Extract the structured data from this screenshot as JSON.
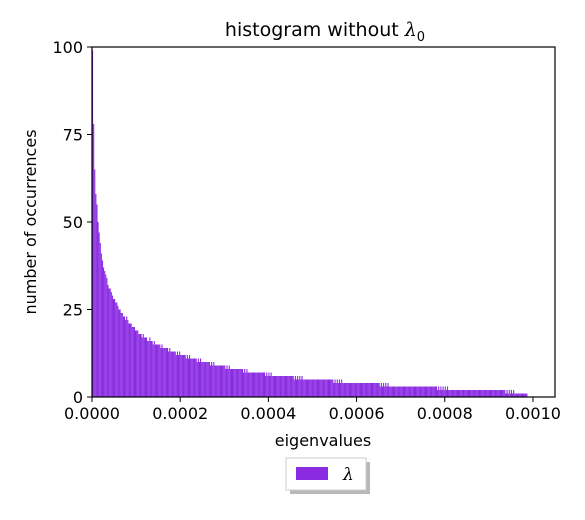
{
  "chart_data": {
    "type": "bar",
    "title": "histogram without λ0",
    "title_main": "histogram without ",
    "title_symbol": "λ",
    "title_subscript": "0",
    "xlabel": "eigenvalues",
    "ylabel": "number of occurrences",
    "xlim": [
      0,
      0.00105
    ],
    "ylim": [
      0,
      100
    ],
    "x_ticks": [
      0,
      0.0002,
      0.0004,
      0.0006,
      0.0008,
      0.001
    ],
    "x_tick_labels": [
      "0.0000",
      "0.0002",
      "0.0004",
      "0.0006",
      "0.0008",
      "0.0010"
    ],
    "y_ticks": [
      0,
      25,
      50,
      75,
      100
    ],
    "y_tick_labels": [
      "0",
      "25",
      "50",
      "75",
      "100"
    ],
    "bin_width": 2.5e-06,
    "bin_centers": [
      1.25e-06,
      3.75e-06,
      6.25e-06,
      8.75e-06,
      1.125e-05,
      1.375e-05,
      1.625e-05,
      1.875e-05,
      2.125e-05,
      2.375e-05,
      2.625e-05,
      2.875e-05,
      3.125e-05,
      3.375e-05,
      3.625e-05,
      3.875e-05,
      4.125e-05,
      4.375e-05,
      4.625e-05,
      4.875e-05,
      5.125e-05,
      5.375e-05,
      5.625e-05,
      5.875e-05,
      6.125e-05,
      6.375e-05,
      6.625e-05,
      6.875e-05,
      7.125e-05,
      7.375e-05,
      7.625e-05,
      7.875e-05,
      8.125e-05,
      8.375e-05,
      8.625e-05,
      8.875e-05,
      9.125e-05,
      9.375e-05,
      9.625e-05,
      9.875e-05,
      0.00010125,
      0.00010375,
      0.00010625,
      0.00010875,
      0.00011125,
      0.00011375,
      0.00011625,
      0.00011875,
      0.00012125,
      0.00012375,
      0.00012625,
      0.00012875,
      0.00013125,
      0.00013375,
      0.00013625,
      0.00013875,
      0.00014125,
      0.00014375,
      0.00014625,
      0.00014875,
      0.00015125,
      0.00015375,
      0.00015625,
      0.00015875,
      0.00016125,
      0.00016375,
      0.00016625,
      0.00016875,
      0.00017125,
      0.00017375,
      0.00017625,
      0.00017875,
      0.00018125,
      0.00018375,
      0.00018625,
      0.00018875,
      0.00019125,
      0.00019375,
      0.00019625,
      0.00019875,
      0.00020125,
      0.00020375,
      0.00020625,
      0.00020875,
      0.00021125,
      0.00021375,
      0.00021625,
      0.00021875,
      0.00022125,
      0.00022375,
      0.00022625,
      0.00022875,
      0.00023125,
      0.00023375,
      0.00023625,
      0.00023875,
      0.00024125,
      0.00024375,
      0.00024625,
      0.00024875,
      0.00025125,
      0.00025375,
      0.00025625,
      0.00025875,
      0.00026125,
      0.00026375,
      0.00026625,
      0.00026875,
      0.00027125,
      0.00027375,
      0.00027625,
      0.00027875,
      0.00028125,
      0.00028375,
      0.00028625,
      0.00028875,
      0.00029125,
      0.00029375,
      0.00029625,
      0.00029875,
      0.00030125,
      0.00030375,
      0.00030625,
      0.00030875,
      0.00031125,
      0.00031375,
      0.00031625,
      0.00031875,
      0.00032125,
      0.00032375,
      0.00032625,
      0.00032875,
      0.00033125,
      0.00033375,
      0.00033625,
      0.00033875,
      0.00034125,
      0.00034375,
      0.00034625,
      0.00034875,
      0.00035125,
      0.00035375,
      0.00035625,
      0.00035875,
      0.00036125,
      0.00036375,
      0.00036625,
      0.00036875,
      0.00037125,
      0.00037375,
      0.00037625,
      0.00037875,
      0.00038125,
      0.00038375,
      0.00038625,
      0.00038875,
      0.00039125,
      0.00039375,
      0.00039625,
      0.00039875,
      0.00040125,
      0.00040375,
      0.00040625,
      0.00040875,
      0.00041125,
      0.00041375,
      0.00041625,
      0.00041875,
      0.00042125,
      0.00042375,
      0.00042625,
      0.00042875,
      0.00043125,
      0.00043375,
      0.00043625,
      0.00043875,
      0.00044125,
      0.00044375,
      0.00044625,
      0.00044875,
      0.00045125,
      0.00045375,
      0.00045625,
      0.00045875,
      0.00046125,
      0.00046375,
      0.00046625,
      0.00046875,
      0.00047125,
      0.00047375,
      0.00047625,
      0.00047875,
      0.00048125,
      0.00048375,
      0.00048625,
      0.00048875,
      0.00049125,
      0.00049375,
      0.00049625,
      0.00049875,
      0.00050125,
      0.00050375,
      0.00050625,
      0.00050875,
      0.00051125,
      0.00051375,
      0.00051625,
      0.00051875,
      0.00052125,
      0.00052375,
      0.00052625,
      0.00052875,
      0.00053125,
      0.00053375,
      0.00053625,
      0.00053875,
      0.00054125,
      0.00054375,
      0.00054625,
      0.00054875,
      0.00055125,
      0.00055375,
      0.00055625,
      0.00055875,
      0.00056125,
      0.00056375,
      0.00056625,
      0.00056875,
      0.00057125,
      0.00057375,
      0.00057625,
      0.00057875,
      0.00058125,
      0.00058375,
      0.00058625,
      0.00058875,
      0.00059125,
      0.00059375,
      0.00059625,
      0.00059875,
      0.00060125,
      0.00060375,
      0.00060625,
      0.00060875,
      0.00061125,
      0.00061375,
      0.00061625,
      0.00061875,
      0.00062125,
      0.00062375,
      0.00062625,
      0.00062875,
      0.00063125,
      0.00063375,
      0.00063625,
      0.00063875,
      0.00064125,
      0.00064375,
      0.00064625,
      0.00064875,
      0.00065125,
      0.00065375,
      0.00065625,
      0.00065875,
      0.00066125,
      0.00066375,
      0.00066625,
      0.00066875,
      0.00067125,
      0.00067375,
      0.00067625,
      0.00067875,
      0.00068125,
      0.00068375,
      0.00068625,
      0.00068875,
      0.00069125,
      0.00069375,
      0.00069625,
      0.00069875,
      0.00070125,
      0.00070375,
      0.00070625,
      0.00070875,
      0.00071125,
      0.00071375,
      0.00071625,
      0.00071875,
      0.00072125,
      0.00072375,
      0.00072625,
      0.00072875,
      0.00073125,
      0.00073375,
      0.00073625,
      0.00073875,
      0.00074125,
      0.00074375,
      0.00074625,
      0.00074875,
      0.00075125,
      0.00075375,
      0.00075625,
      0.00075875,
      0.00076125,
      0.00076375,
      0.00076625,
      0.00076875,
      0.00077125,
      0.00077375,
      0.00077625,
      0.00077875,
      0.00078125,
      0.00078375,
      0.00078625,
      0.00078875,
      0.00079125,
      0.00079375,
      0.00079625,
      0.00079875,
      0.00080125,
      0.00080375,
      0.00080625,
      0.00080875,
      0.00081125,
      0.00081375,
      0.00081625,
      0.00081875,
      0.00082125,
      0.00082375,
      0.00082625,
      0.00082875,
      0.00083125,
      0.00083375,
      0.00083625,
      0.00083875,
      0.00084125,
      0.00084375,
      0.00084625,
      0.00084875,
      0.00085125,
      0.00085375,
      0.00085625,
      0.00085875,
      0.00086125,
      0.00086375,
      0.00086625,
      0.00086875,
      0.00087125,
      0.00087375,
      0.00087625,
      0.00087875,
      0.00088125,
      0.00088375,
      0.00088625,
      0.00088875,
      0.00089125,
      0.00089375,
      0.00089625,
      0.00089875,
      0.00090125,
      0.00090375,
      0.00090625,
      0.00090875,
      0.00091125,
      0.00091375,
      0.00091625,
      0.00091875,
      0.00092125,
      0.00092375,
      0.00092625,
      0.00092875,
      0.00093125,
      0.00093375,
      0.00093625,
      0.00093875,
      0.00094125,
      0.00094375,
      0.00094625,
      0.00094875,
      0.00095125,
      0.00095375,
      0.00095625,
      0.00095875,
      0.00096125,
      0.00096375,
      0.00096625,
      0.00096875,
      0.00097125,
      0.00097375,
      0.00097625,
      0.00097875,
      0.00098125,
      0.00098375,
      0.00098625,
      0.00098875,
      0.00099125,
      0.00099375,
      0.00099625,
      0.00099875,
      0.00100125,
      0.00100375
    ],
    "values": [
      99,
      78,
      65,
      58,
      55,
      50,
      47,
      44,
      41,
      39,
      37,
      36,
      35,
      34,
      32,
      31,
      31,
      30,
      29,
      28,
      28,
      27,
      27,
      26,
      25,
      25,
      24,
      24,
      23,
      23,
      22,
      23,
      22,
      21,
      21,
      21,
      20,
      20,
      20,
      19,
      19,
      19,
      18,
      18,
      18,
      17,
      18,
      17,
      17,
      17,
      16,
      16,
      17,
      16,
      16,
      15,
      16,
      15,
      15,
      15,
      15,
      15,
      14,
      15,
      14,
      14,
      14,
      14,
      14,
      13,
      14,
      13,
      13,
      13,
      13,
      13,
      12,
      13,
      12,
      13,
      12,
      12,
      12,
      12,
      12,
      11,
      12,
      11,
      12,
      11,
      11,
      11,
      11,
      11,
      11,
      10,
      11,
      10,
      11,
      10,
      10,
      10,
      10,
      10,
      10,
      10,
      10,
      9,
      10,
      9,
      10,
      9,
      9,
      9,
      9,
      9,
      9,
      9,
      9,
      9,
      9,
      8,
      9,
      8,
      9,
      8,
      8,
      8,
      8,
      8,
      8,
      8,
      8,
      8,
      8,
      8,
      8,
      7,
      8,
      7,
      8,
      7,
      7,
      7,
      7,
      7,
      7,
      7,
      7,
      7,
      7,
      7,
      7,
      7,
      7,
      7,
      7,
      6,
      7,
      6,
      7,
      6,
      7,
      6,
      6,
      6,
      6,
      6,
      6,
      6,
      6,
      6,
      6,
      6,
      6,
      6,
      6,
      6,
      6,
      6,
      6,
      6,
      6,
      5,
      6,
      5,
      6,
      5,
      6,
      5,
      6,
      5,
      5,
      5,
      5,
      5,
      5,
      5,
      5,
      5,
      5,
      5,
      5,
      5,
      5,
      5,
      5,
      5,
      5,
      5,
      5,
      5,
      5,
      5,
      5,
      5,
      5,
      5,
      5,
      4,
      5,
      4,
      5,
      4,
      5,
      4,
      5,
      4,
      4,
      4,
      4,
      4,
      4,
      4,
      4,
      4,
      4,
      4,
      4,
      4,
      4,
      4,
      4,
      4,
      4,
      4,
      4,
      4,
      4,
      4,
      4,
      4,
      4,
      4,
      4,
      4,
      4,
      4,
      4,
      4,
      4,
      3,
      4,
      3,
      4,
      3,
      4,
      3,
      4,
      3,
      3,
      3,
      3,
      3,
      3,
      3,
      3,
      3,
      3,
      3,
      3,
      3,
      3,
      3,
      3,
      3,
      3,
      3,
      3,
      3,
      3,
      3,
      3,
      3,
      3,
      3,
      3,
      3,
      3,
      3,
      3,
      3,
      3,
      3,
      3,
      3,
      3,
      3,
      3,
      3,
      3,
      3,
      3,
      2,
      3,
      2,
      3,
      2,
      3,
      2,
      3,
      2,
      3,
      2,
      2,
      2,
      2,
      2,
      2,
      2,
      2,
      2,
      2,
      2,
      2,
      2,
      2,
      2,
      2,
      2,
      2,
      2,
      2,
      2,
      2,
      2,
      2,
      2,
      2,
      2,
      2,
      2,
      2,
      2,
      2,
      2,
      2,
      2,
      2,
      2,
      2,
      2,
      2,
      2,
      2,
      2,
      2,
      2,
      2,
      2,
      2,
      2,
      2,
      2,
      2,
      1,
      2,
      1,
      2,
      1,
      2,
      1,
      2,
      1,
      1,
      1,
      1,
      1,
      1,
      1,
      1,
      1,
      1,
      1,
      1
    ],
    "color": "#8a2be2",
    "series": [
      {
        "name": "λ",
        "color": "#8a2be2"
      }
    ],
    "legend_position": "bottom-center-outside",
    "grid": false
  }
}
